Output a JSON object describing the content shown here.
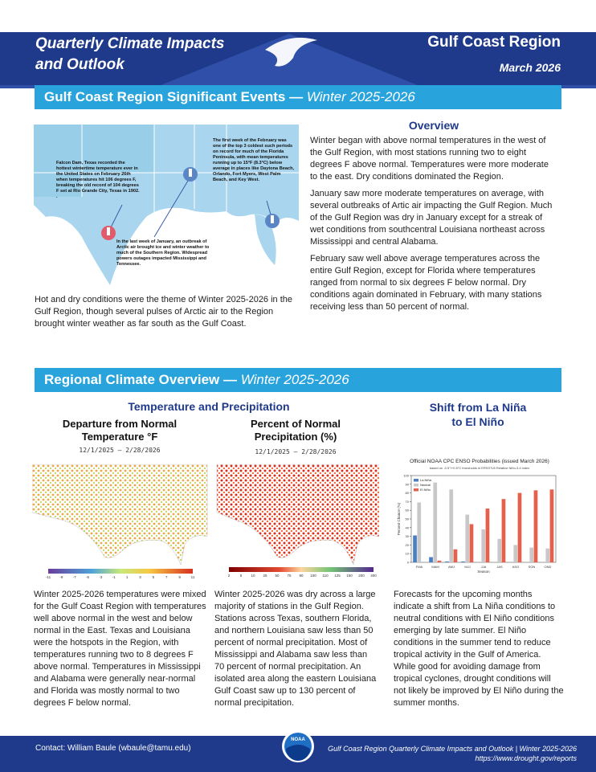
{
  "header": {
    "title_lines": [
      "Quarterly Climate Impacts",
      "and Outlook"
    ],
    "region": "Gulf Coast Region",
    "date": "March 2026"
  },
  "section1": {
    "title": "Gulf Coast Region Significant Events —",
    "subtitle": "Winter 2025-2026",
    "map_notes": [
      "Falcon Dam, Texas recorded the hottest wintertime temperature ever in the United States on February 26th when temperatures hit 106 degrees F, breaking the old record of 104 degrees F set at Rio Grande City, Texas in 1902. .",
      "The first week of the February was one of the top 3 coldest such periods on record for much of the Florida Peninsula, with mean temperatures running up to 15°F (8.3°C) below average in places like Daytona Beach, Orlando, Fort Myers, West Palm Beach, and Key West.",
      "In the last week of January, an outbreak of Arctic air brought ice and winter weather to much of the Southern Region. Widespread powers outages impacted Mississippi and Tennessee."
    ],
    "caption": "Hot and dry conditions were the theme of Winter 2025-2026 in the Gulf Region, though several pulses of Arctic air to the Region brought winter weather as far south as the Gulf Coast.",
    "overview": {
      "heading": "Overview",
      "paragraphs": [
        "Winter began with above normal temperatures in the west of the Gulf Region, with most stations running two to eight degrees F above normal. Temperatures were more moderate to the east. Dry conditions dominated the Region.",
        "January saw more moderate temperatures on average, with several outbreaks of Artic air impacting the Gulf Region. Much of the Gulf Region was dry in January except for a streak of wet conditions from southcentral Louisiana northeast across Mississippi and central Alabama.",
        "February saw well above average temperatures across the entire Gulf Region, except for Florida where temperatures ranged from normal to six degrees F below normal. Dry conditions again dominated in February, with many stations receiving less than 50 percent of normal."
      ]
    }
  },
  "section2": {
    "title": "Regional Climate Overview —",
    "subtitle": "Winter 2025-2026",
    "temp_precip_heading": "Temperature and Precipitation",
    "temperature": {
      "title_lines": [
        "Departure from Normal",
        "Temperature °F"
      ],
      "dates": "12/1/2025 – 2/28/2026",
      "colorbar_ticks": [
        -11,
        -9,
        -7,
        -5,
        -3,
        -1,
        1,
        3,
        5,
        7,
        9,
        11
      ],
      "text": "Winter 2025-2026 temperatures were mixed for the Gulf Coast Region with temperatures well above normal in the west and below normal in the East. Texas and Louisiana were the hotspots in the Region, with temperatures running two to 8 degrees F above normal. Temperatures in Mississippi and Alabama were generally near-normal and Florida was mostly normal to two degrees F below normal."
    },
    "precipitation": {
      "title_lines": [
        "Percent of Normal",
        "Precipitation (%)"
      ],
      "dates": "12/1/2025 – 2/28/2026",
      "colorbar_ticks": [
        2,
        5,
        10,
        25,
        50,
        75,
        90,
        100,
        110,
        125,
        150,
        200,
        400
      ],
      "text": "Winter 2025-2026 was dry across a large majority of stations in the Gulf Region. Stations across Texas, southern Florida, and northern Louisiana saw less than 50 percent of normal precipitation. Most of Mississippi and Alabama saw less than 70 percent of normal precipitation. An isolated area along the eastern Louisiana Gulf Coast saw up to 130 percent of normal precipitation."
    },
    "enso": {
      "heading_lines": [
        "Shift from La Niña",
        "to El Niño"
      ],
      "chart": {
        "type": "bar",
        "title": "Official NOAA CPC ENSO Probabilities (issued March 2026)",
        "subtitle": "based on -0.5°/+0.5°C thresholds in ERSSTv5 Relative Niño-3.4 index",
        "x_label": "Season",
        "y_label": "Percent Chance (%)",
        "categories": [
          "FMA",
          "MAM",
          "AMJ",
          "MJJ",
          "JJA",
          "JAS",
          "ASO",
          "SON",
          "OND"
        ],
        "series": [
          {
            "name": "La Niña",
            "color": "#4a7fc1",
            "values": [
              31,
              6,
              1,
              1,
              0,
              0,
              0,
              0,
              0
            ]
          },
          {
            "name": "Neutral",
            "color": "#c8c8c8",
            "values": [
              69,
              92,
              84,
              55,
              38,
              27,
              20,
              17,
              16
            ]
          },
          {
            "name": "El Niño",
            "color": "#e8604c",
            "values": [
              0,
              2,
              15,
              44,
              62,
              73,
              80,
              83,
              84
            ]
          }
        ],
        "ylim": [
          0,
          100
        ],
        "yticks": [
          0,
          10,
          20,
          30,
          40,
          50,
          60,
          70,
          80,
          90,
          100
        ],
        "legend": "upper-left"
      },
      "text": "Forecasts for the upcoming months indicate a shift from La Niña conditions to neutral conditions with El Niño conditions emerging by late summer. El Niño conditions in the summer tend to reduce tropical activity in the Gulf of America. While good for avoiding damage from tropical cyclones, drought conditions will not likely be improved by El Niño during the summer months."
    }
  },
  "footer": {
    "contact": "Contact: William Baule (wbaule@tamu.edu)",
    "citation": "Gulf Coast Region Quarterly Climate Impacts and Outlook | Winter 2025-2026",
    "url": "https://www.drought.gov/reports",
    "logo": "NOAA"
  }
}
